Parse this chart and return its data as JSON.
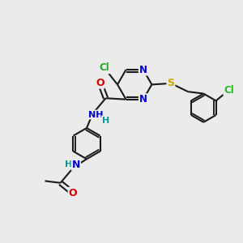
{
  "bg_color": "#ebebeb",
  "atom_colors": {
    "C": "#000000",
    "N": "#0000cc",
    "O": "#cc0000",
    "S": "#ccaa00",
    "Cl_green": "#22aa22",
    "Cl_green2": "#22bb22",
    "H": "#009999",
    "NH": "#0000cc"
  },
  "bond_color": "#1a1a1a",
  "lw": 1.5
}
